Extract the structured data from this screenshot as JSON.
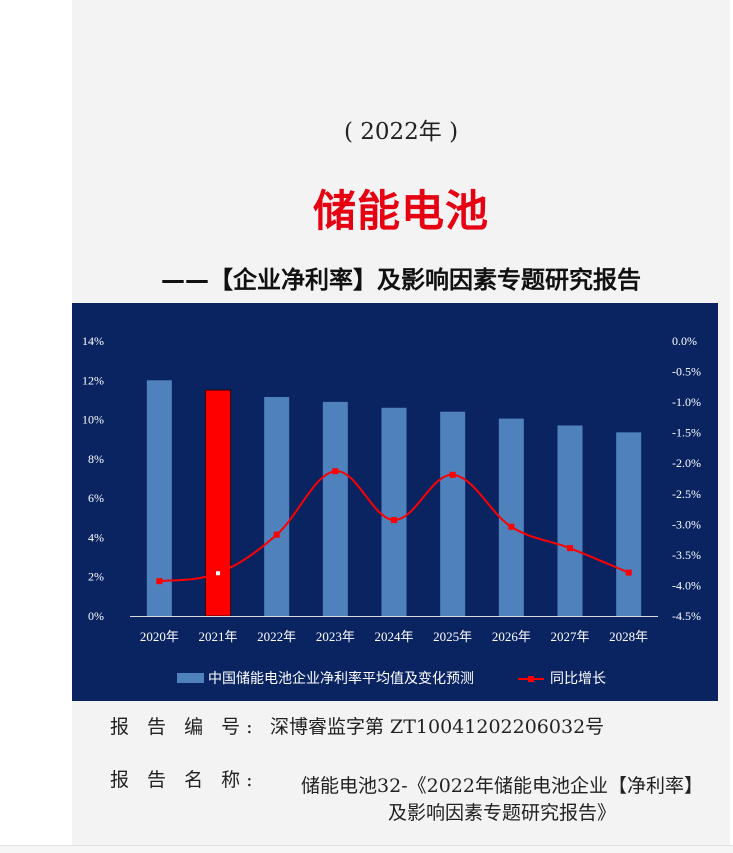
{
  "header": {
    "year_line": "( 2022年 )",
    "title": "储能电池",
    "subtitle": "——【企业净利率】及影响因素专题研究报告"
  },
  "meta": {
    "report_no_label": "报 告 编 号:",
    "report_no_value": "深博睿监字第 ZT10041202206032号",
    "report_name_label": "报 告 名 称:",
    "report_name_line1": "储能电池32-《2022年储能电池企业【净利率】",
    "report_name_line2": "及影响因素专题研究报告》"
  },
  "chart_data": {
    "type": "bar",
    "categories": [
      "2020年",
      "2021年",
      "2022年",
      "2023年",
      "2024年",
      "2025年",
      "2026年",
      "2027年",
      "2028年"
    ],
    "series": [
      {
        "name": "中国储能电池企业净利率平均值及变化预测",
        "type": "bar",
        "axis": "left",
        "values": [
          12.0,
          11.5,
          11.15,
          10.9,
          10.6,
          10.4,
          10.05,
          9.7,
          9.35
        ],
        "color": "#4f81bd",
        "highlight_index": 1,
        "highlight_color": "#ff0000"
      },
      {
        "name": "同比增长",
        "type": "line",
        "axis": "right",
        "values": [
          -3.93,
          -3.8,
          -3.17,
          -2.13,
          -2.93,
          -2.19,
          -3.04,
          -3.39,
          -3.79
        ],
        "color": "#ff0000"
      }
    ],
    "y_left": {
      "min": 0,
      "max": 14,
      "step": 2,
      "ticks": [
        "0%",
        "2%",
        "4%",
        "6%",
        "8%",
        "10%",
        "12%",
        "14%"
      ]
    },
    "y_right": {
      "min": -4.5,
      "max": 0.0,
      "step": 0.5,
      "ticks": [
        "-4.5%",
        "-4.0%",
        "-3.5%",
        "-3.0%",
        "-2.5%",
        "-2.0%",
        "-1.5%",
        "-1.0%",
        "-0.5%",
        "0.0%"
      ]
    },
    "legend_position": "bottom",
    "grid": false,
    "background": "#0a2462"
  }
}
